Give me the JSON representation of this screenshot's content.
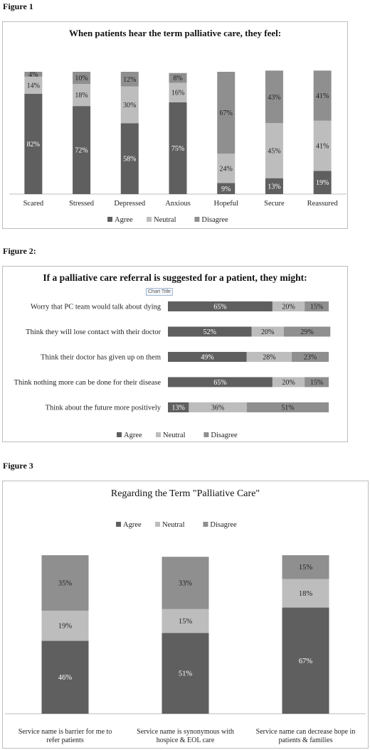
{
  "figure_labels": [
    "Figure 1",
    "Figure 2:",
    "Figure 3"
  ],
  "chart_hint": "Chart Title",
  "colors": {
    "agree": "#5f5f5f",
    "neutral": "#bdbdbd",
    "disagree": "#8f8f8f"
  },
  "chart_data": [
    {
      "type": "bar",
      "orientation": "vertical",
      "stacked": "100%",
      "title": "When patients hear the term palliative care, they feel:",
      "categories": [
        "Scared",
        "Stressed",
        "Depressed",
        "Anxious",
        "Hopeful",
        "Secure",
        "Reassured"
      ],
      "series": [
        {
          "name": "Agree",
          "values": [
            82,
            72,
            58,
            75,
            9,
            13,
            19
          ]
        },
        {
          "name": "Neutral",
          "values": [
            14,
            18,
            30,
            16,
            24,
            45,
            41
          ]
        },
        {
          "name": "Disagree",
          "values": [
            4,
            10,
            12,
            8,
            67,
            43,
            41
          ]
        }
      ],
      "legend": "bottom",
      "grid": false
    },
    {
      "type": "bar",
      "orientation": "horizontal",
      "stacked": "100%",
      "title": "If a palliative care referral is suggested for a patient, they might:",
      "categories": [
        "Worry that PC team would talk about dying",
        "Think they will lose contact with their doctor",
        "Think their doctor has given up on them",
        "Think nothing more can be done for their disease",
        "Think about the future more positively"
      ],
      "series": [
        {
          "name": "Agree",
          "values": [
            65,
            52,
            49,
            65,
            13
          ]
        },
        {
          "name": "Neutral",
          "values": [
            20,
            20,
            28,
            20,
            36
          ]
        },
        {
          "name": "Disagree",
          "values": [
            15,
            29,
            23,
            15,
            51
          ]
        }
      ],
      "legend": "bottom",
      "grid": false
    },
    {
      "type": "bar",
      "orientation": "vertical",
      "stacked": "100%",
      "title": "Regarding the Term \"Palliative Care\"",
      "categories": [
        "Service name is barrier for me to refer patients",
        "Service name is synonymous with hospice & EOL care",
        "Service name can decrease hope in patients & families"
      ],
      "category_lines": [
        [
          "Service name is barrier for me to",
          "refer patients"
        ],
        [
          "Service name is synonymous with",
          "hospice & EOL care"
        ],
        [
          "Service name can decrease hope in",
          "patients & families"
        ]
      ],
      "series": [
        {
          "name": "Agree",
          "values": [
            46,
            51,
            67
          ]
        },
        {
          "name": "Neutral",
          "values": [
            19,
            15,
            18
          ]
        },
        {
          "name": "Disagree",
          "values": [
            35,
            33,
            15
          ]
        }
      ],
      "legend": "top",
      "grid": false
    }
  ]
}
